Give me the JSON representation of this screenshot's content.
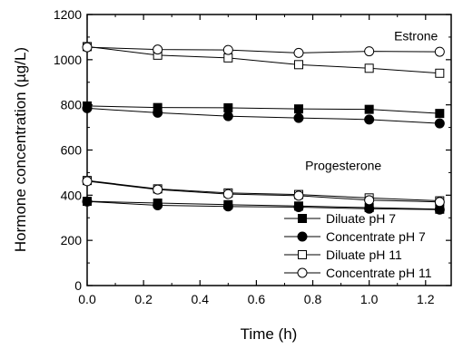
{
  "chart_data": {
    "type": "line",
    "xlabel": "Time (h)",
    "ylabel": "Hormone concentration (µg/L)",
    "xlim": [
      0,
      1.25
    ],
    "ylim": [
      0,
      1200
    ],
    "xticks": [
      0.0,
      0.2,
      0.4,
      0.6,
      0.8,
      1.0,
      1.2
    ],
    "xtick_labels": [
      "0.0",
      "0.2",
      "0.4",
      "0.6",
      "0.8",
      "1.0",
      "1.2"
    ],
    "yticks": [
      0,
      200,
      400,
      600,
      800,
      1000,
      1200
    ],
    "ytick_labels": [
      "0",
      "200",
      "400",
      "600",
      "800",
      "1000",
      "1200"
    ],
    "grid": false,
    "legend_position": "lower-right",
    "annotations": [
      {
        "text": "Estrone",
        "x": 1.25,
        "y": 1085,
        "anchor": "end"
      },
      {
        "text": "Progesterone",
        "x": 1.05,
        "y": 512,
        "anchor": "end"
      }
    ],
    "series": [
      {
        "name": "Diluate pH 7",
        "marker": "square",
        "filled": true,
        "group": "estrone",
        "x": [
          0,
          0.25,
          0.5,
          0.75,
          1.0,
          1.25
        ],
        "y": [
          795,
          788,
          787,
          782,
          780,
          762
        ]
      },
      {
        "name": "Concentrate pH 7",
        "marker": "circle",
        "filled": true,
        "group": "estrone",
        "x": [
          0,
          0.25,
          0.5,
          0.75,
          1.0,
          1.25
        ],
        "y": [
          785,
          765,
          750,
          742,
          735,
          718
        ]
      },
      {
        "name": "Diluate pH 11",
        "marker": "square",
        "filled": false,
        "group": "estrone",
        "x": [
          0,
          0.25,
          0.5,
          0.75,
          1.0,
          1.25
        ],
        "y": [
          1058,
          1020,
          1008,
          978,
          962,
          940
        ]
      },
      {
        "name": "Concentrate pH 11",
        "marker": "circle",
        "filled": false,
        "group": "estrone",
        "x": [
          0,
          0.25,
          0.5,
          0.75,
          1.0,
          1.25
        ],
        "y": [
          1055,
          1045,
          1043,
          1030,
          1037,
          1035
        ]
      },
      {
        "name": "Diluate pH 7",
        "marker": "square",
        "filled": true,
        "group": "progesterone",
        "x": [
          0,
          0.25,
          0.5,
          0.75,
          1.0,
          1.25
        ],
        "y": [
          373,
          365,
          358,
          352,
          345,
          338
        ]
      },
      {
        "name": "Concentrate pH 7",
        "marker": "circle",
        "filled": true,
        "group": "progesterone",
        "x": [
          0,
          0.25,
          0.5,
          0.75,
          1.0,
          1.25
        ],
        "y": [
          372,
          355,
          350,
          347,
          340,
          336
        ]
      },
      {
        "name": "Diluate pH 11",
        "marker": "square",
        "filled": false,
        "group": "progesterone",
        "x": [
          0,
          0.25,
          0.5,
          0.75,
          1.0,
          1.25
        ],
        "y": [
          465,
          428,
          410,
          403,
          388,
          375
        ]
      },
      {
        "name": "Concentrate pH 11",
        "marker": "circle",
        "filled": false,
        "group": "progesterone",
        "x": [
          0,
          0.25,
          0.5,
          0.75,
          1.0,
          1.25
        ],
        "y": [
          462,
          425,
          405,
          398,
          378,
          370
        ]
      }
    ],
    "legend": [
      {
        "label": "Diluate pH 7",
        "marker": "square",
        "filled": true
      },
      {
        "label": "Concentrate pH 7",
        "marker": "circle",
        "filled": true
      },
      {
        "label": "Diluate pH 11",
        "marker": "square",
        "filled": false
      },
      {
        "label": "Concentrate pH 11",
        "marker": "circle",
        "filled": false
      }
    ]
  }
}
